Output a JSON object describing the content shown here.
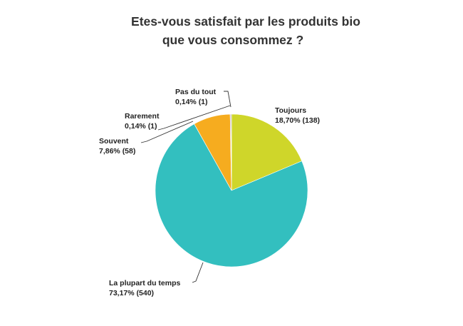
{
  "chart_data": {
    "type": "pie",
    "title_lines": [
      "Etes-vous satisfait par les produits bio",
      "que vous consommez ?"
    ],
    "slices": [
      {
        "name": "Toujours",
        "label_line2": "18,70% (138)",
        "percent": 18.7,
        "count": 138,
        "color": "#cfd62a"
      },
      {
        "name": "La plupart du temps",
        "label_line2": "73,17% (540)",
        "percent": 73.17,
        "count": 540,
        "color": "#33bfbf"
      },
      {
        "name": "Souvent",
        "label_line2": "7,86% (58)",
        "percent": 7.86,
        "count": 58,
        "color": "#f6ac1f"
      },
      {
        "name": "Rarement",
        "label_line2": "0,14% (1)",
        "percent": 0.14,
        "count": 1,
        "color": "#9c4fa0"
      },
      {
        "name": "Pas du tout",
        "label_line2": "0,14% (1)",
        "percent": 0.14,
        "count": 1,
        "color": "#5b6770"
      }
    ],
    "start_angle_deg": 0,
    "direction": "clockwise",
    "legend": "none"
  }
}
